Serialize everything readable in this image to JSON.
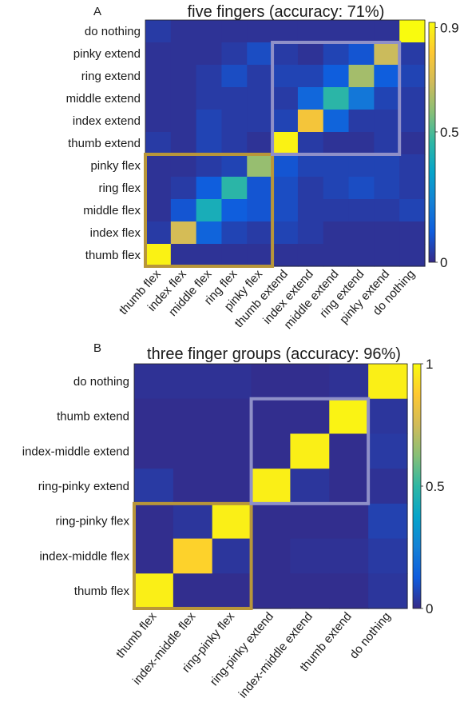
{
  "figure": {
    "colormap": [
      "#352a87",
      "#0f5cdd",
      "#1481d6",
      "#06a4ca",
      "#2eb7a4",
      "#87bf77",
      "#d1bb59",
      "#fec832",
      "#f9fb0e"
    ],
    "group_box_colors": {
      "flex": "#b8963a",
      "extend": "#8f90c8"
    }
  },
  "chart_data": [
    {
      "panel": "A",
      "type": "heatmap",
      "title": "five fingers (accuracy: 71%)",
      "xlabels": [
        "thumb flex",
        "index flex",
        "middle flex",
        "ring flex",
        "pinky flex",
        "thumb extend",
        "index extend",
        "middle extend",
        "ring extend",
        "pinky extend",
        "do nothing"
      ],
      "ylabels_top_to_bottom": [
        "do nothing",
        "pinky extend",
        "ring extend",
        "middle extend",
        "index extend",
        "thumb extend",
        "pinky flex",
        "ring flex",
        "middle flex",
        "index flex",
        "thumb flex"
      ],
      "matrix_top_to_bottom": [
        [
          0.04,
          0.02,
          0.02,
          0.02,
          0.02,
          0.02,
          0.02,
          0.02,
          0.02,
          0.02,
          0.92
        ],
        [
          0.02,
          0.02,
          0.02,
          0.04,
          0.08,
          0.04,
          0.02,
          0.06,
          0.1,
          0.68,
          0.04
        ],
        [
          0.02,
          0.02,
          0.04,
          0.08,
          0.04,
          0.06,
          0.06,
          0.12,
          0.62,
          0.12,
          0.06
        ],
        [
          0.02,
          0.02,
          0.04,
          0.04,
          0.04,
          0.04,
          0.15,
          0.45,
          0.2,
          0.06,
          0.04
        ],
        [
          0.02,
          0.02,
          0.06,
          0.04,
          0.04,
          0.06,
          0.78,
          0.14,
          0.04,
          0.04,
          0.04
        ],
        [
          0.04,
          0.02,
          0.06,
          0.04,
          0.02,
          0.9,
          0.04,
          0.02,
          0.02,
          0.04,
          0.02
        ],
        [
          0.02,
          0.02,
          0.04,
          0.06,
          0.6,
          0.1,
          0.06,
          0.06,
          0.06,
          0.06,
          0.04
        ],
        [
          0.02,
          0.04,
          0.12,
          0.45,
          0.1,
          0.08,
          0.04,
          0.06,
          0.08,
          0.06,
          0.04
        ],
        [
          0.02,
          0.1,
          0.4,
          0.12,
          0.1,
          0.08,
          0.04,
          0.04,
          0.04,
          0.04,
          0.06
        ],
        [
          0.04,
          0.7,
          0.14,
          0.06,
          0.04,
          0.06,
          0.04,
          0.02,
          0.02,
          0.02,
          0.02
        ],
        [
          0.9,
          0.02,
          0.02,
          0.02,
          0.02,
          0.02,
          0.02,
          0.02,
          0.02,
          0.02,
          0.02
        ]
      ],
      "colorbar": {
        "min": 0,
        "max": 0.92,
        "ticks": [
          0,
          0.5,
          0.9
        ],
        "tick_labels": [
          "0",
          "0.5",
          "0.9"
        ]
      },
      "group_boxes": [
        {
          "group": "flex",
          "x_from": "thumb flex",
          "x_to": "pinky flex",
          "y_from": "pinky flex",
          "y_to": "thumb flex"
        },
        {
          "group": "extend",
          "x_from": "thumb extend",
          "x_to": "pinky extend",
          "y_from": "pinky extend",
          "y_to": "thumb extend"
        }
      ]
    },
    {
      "panel": "B",
      "type": "heatmap",
      "title": "three finger groups (accuracy: 96%)",
      "xlabels": [
        "thumb flex",
        "index-middle flex",
        "ring-pinky flex",
        "ring-pinky extend",
        "index-middle extend",
        "thumb extend",
        "do nothing"
      ],
      "ylabels_top_to_bottom": [
        "do nothing",
        "thumb extend",
        "index-middle extend",
        "ring-pinky extend",
        "ring-pinky flex",
        "index-middle flex",
        "thumb flex"
      ],
      "matrix_top_to_bottom": [
        [
          0.02,
          0.02,
          0.02,
          0.01,
          0.01,
          0.02,
          0.97
        ],
        [
          0.01,
          0.01,
          0.01,
          0.01,
          0.01,
          0.98,
          0.03
        ],
        [
          0.01,
          0.01,
          0.01,
          0.01,
          0.97,
          0.01,
          0.04
        ],
        [
          0.04,
          0.01,
          0.01,
          0.97,
          0.03,
          0.01,
          0.02
        ],
        [
          0.01,
          0.03,
          0.97,
          0.01,
          0.01,
          0.01,
          0.06
        ],
        [
          0.01,
          0.9,
          0.03,
          0.01,
          0.02,
          0.02,
          0.04
        ],
        [
          0.97,
          0.01,
          0.01,
          0.01,
          0.01,
          0.01,
          0.03
        ]
      ],
      "colorbar": {
        "min": 0,
        "max": 1,
        "ticks": [
          0,
          0.5,
          1
        ],
        "tick_labels": [
          "0",
          "0.5",
          "1"
        ]
      },
      "group_boxes": [
        {
          "group": "flex",
          "x_from": "thumb flex",
          "x_to": "ring-pinky flex",
          "y_from": "ring-pinky flex",
          "y_to": "thumb flex"
        },
        {
          "group": "extend",
          "x_from": "ring-pinky extend",
          "x_to": "thumb extend",
          "y_from": "thumb extend",
          "y_to": "ring-pinky extend"
        }
      ]
    }
  ]
}
